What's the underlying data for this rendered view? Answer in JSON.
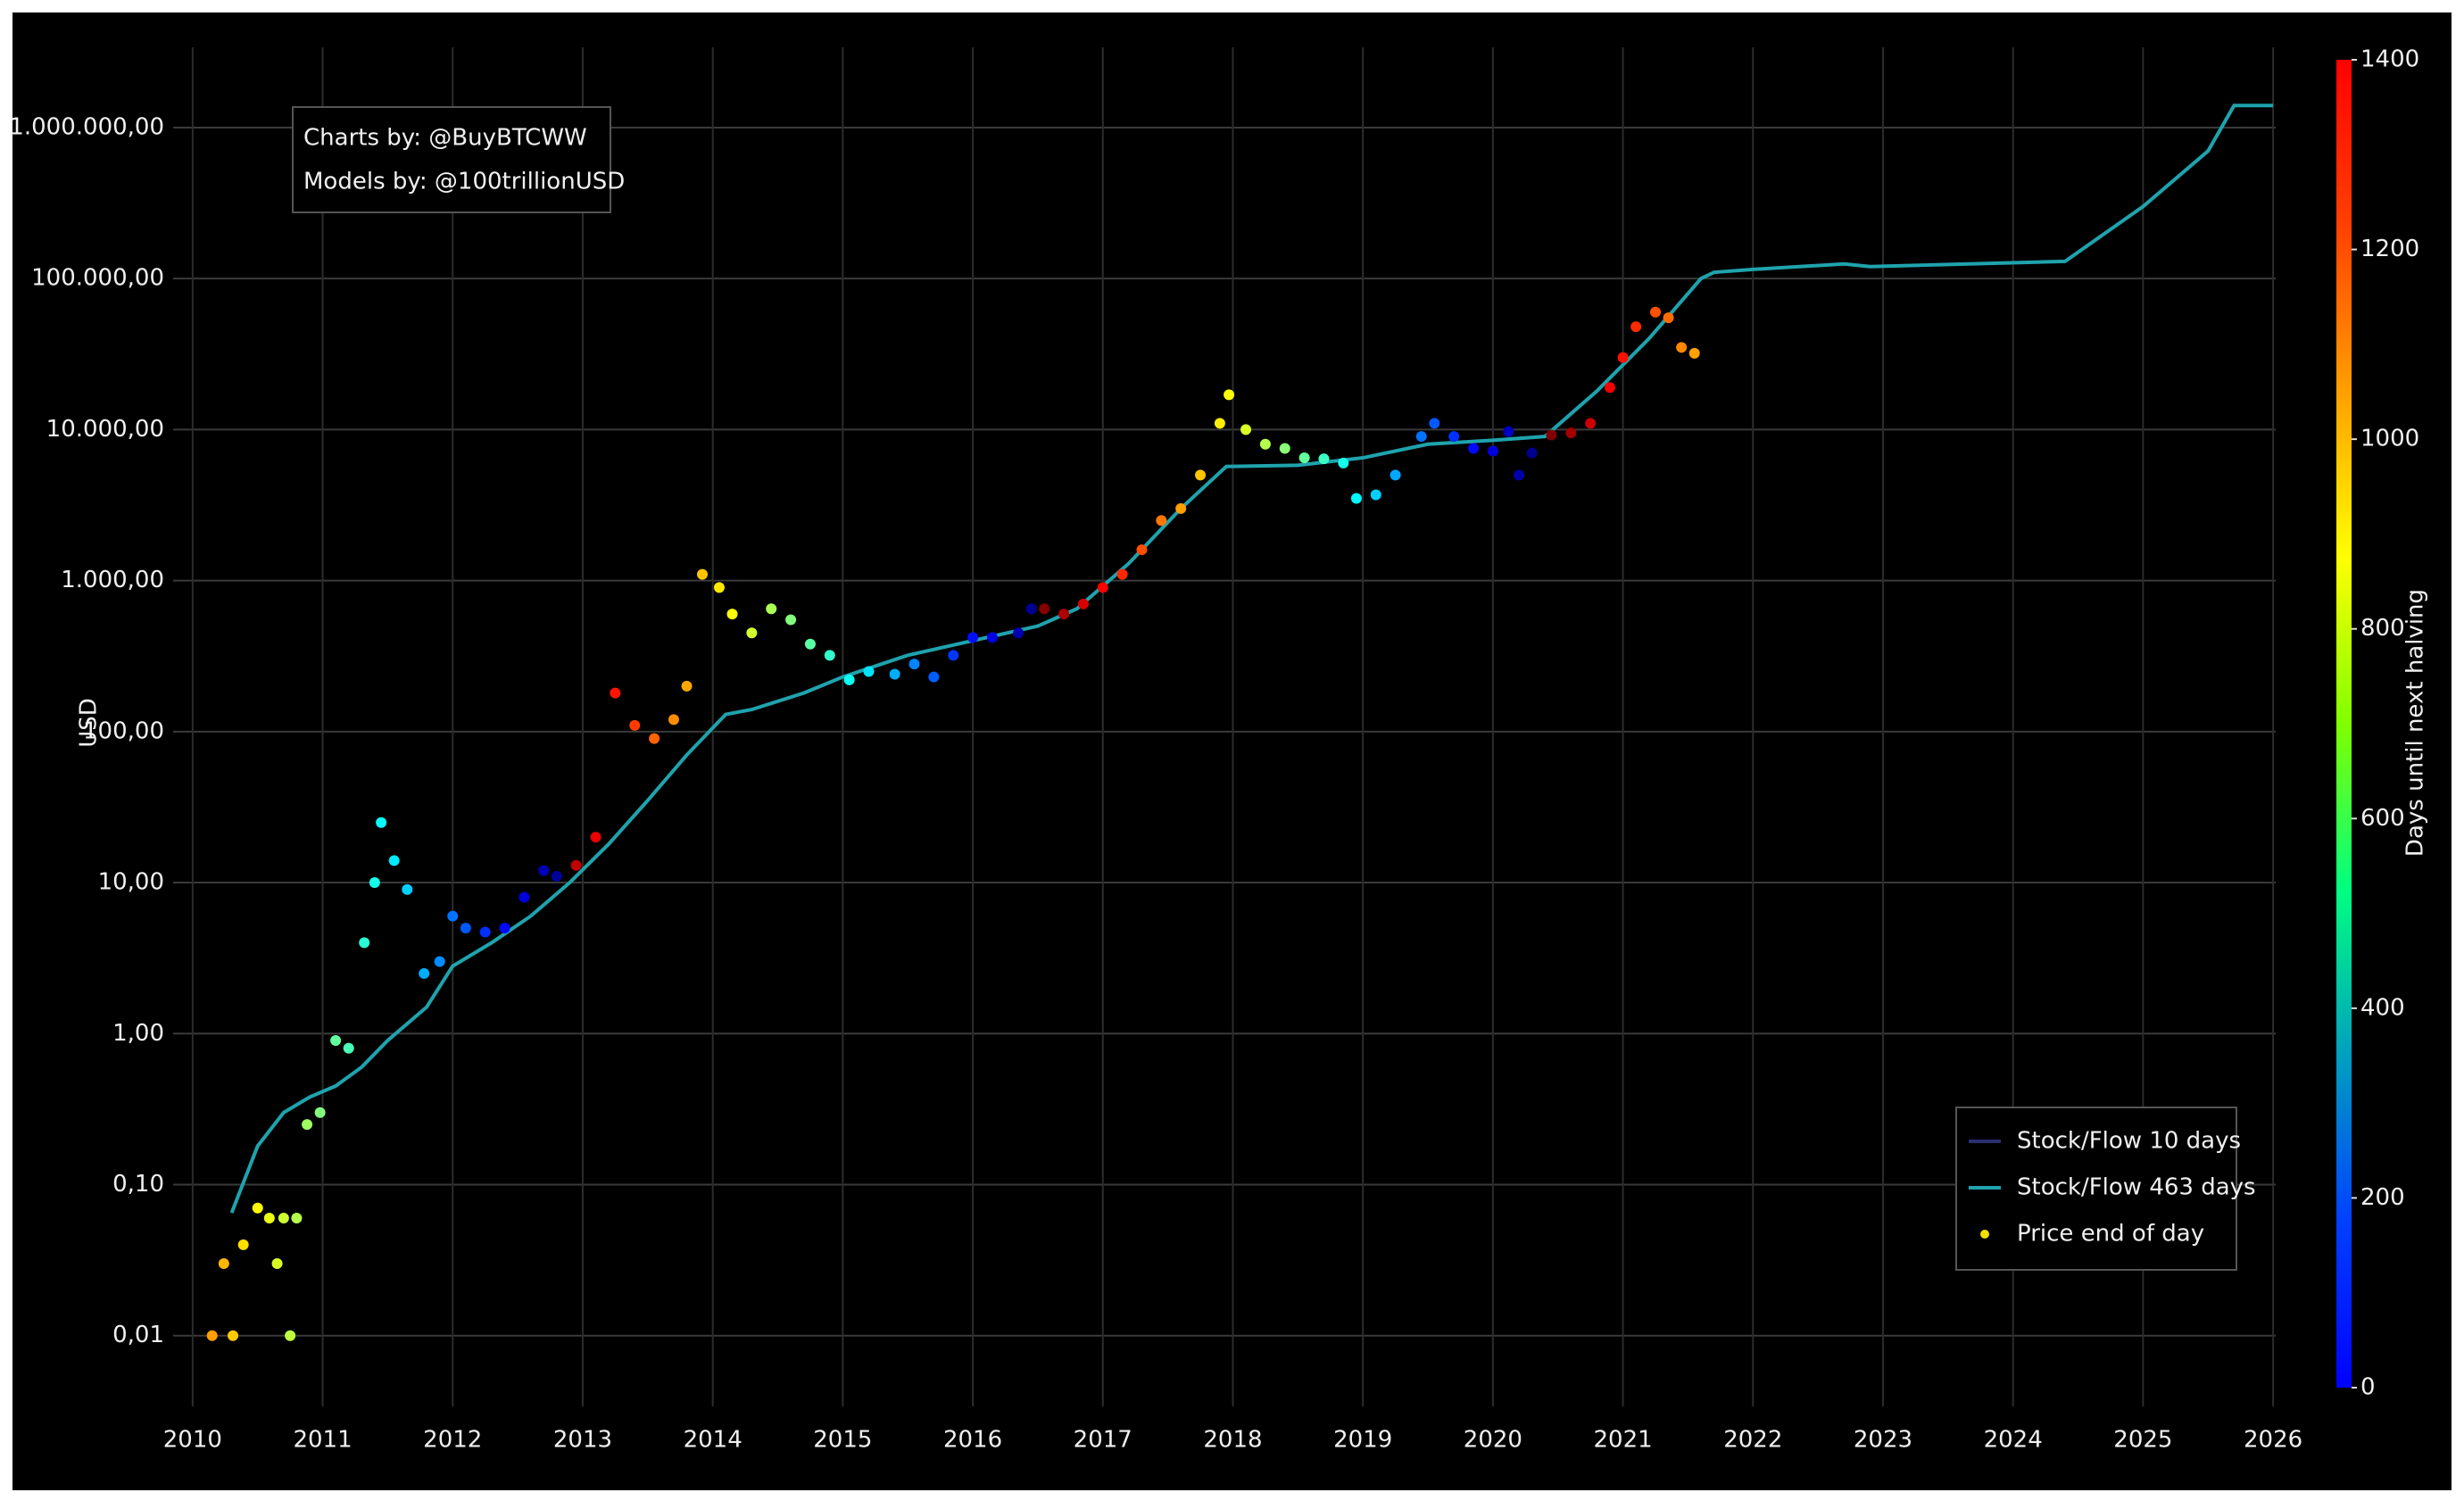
{
  "chart_data": {
    "type": "line",
    "y_label": "USD",
    "log_y": true,
    "grid": true,
    "legend_position": "lower right",
    "annotations": [
      "Charts by: @BuyBTCWW",
      "Models by: @100trillionUSD"
    ],
    "xlim": [
      2009.85,
      2026.02
    ],
    "xticks": [
      2010,
      2011,
      2012,
      2013,
      2014,
      2015,
      2016,
      2017,
      2018,
      2019,
      2020,
      2021,
      2022,
      2023,
      2024,
      2025,
      2026
    ],
    "ylim": [
      0.0034,
      3400000
    ],
    "yticks": [
      {
        "value": 0.01,
        "label": "0,01"
      },
      {
        "value": 0.1,
        "label": "0,10"
      },
      {
        "value": 1,
        "label": "1,00"
      },
      {
        "value": 10,
        "label": "10,00"
      },
      {
        "value": 100,
        "label": "100,00"
      },
      {
        "value": 1000,
        "label": "1.000,00"
      },
      {
        "value": 10000,
        "label": "10.000,00"
      },
      {
        "value": 100000,
        "label": "100.000,00"
      },
      {
        "value": 1000000,
        "label": "1.000.000,00"
      }
    ],
    "colorbar": {
      "label": "Days until next halving",
      "range": [
        0,
        1400
      ],
      "ticks": [
        0,
        200,
        400,
        600,
        800,
        1000,
        1200,
        1400
      ]
    },
    "series": [
      {
        "name": "Stock/Flow 10 days",
        "kind": "line",
        "color": "#2b2f6e",
        "x": [],
        "values": []
      },
      {
        "name": "Stock/Flow 463 days",
        "kind": "line",
        "color": "#1fa3ad",
        "x": [
          2010.3,
          2010.5,
          2010.7,
          2010.9,
          2011.1,
          2011.3,
          2011.5,
          2011.8,
          2012.0,
          2012.3,
          2012.6,
          2012.9,
          2013.2,
          2013.5,
          2013.8,
          2014.1,
          2014.3,
          2014.7,
          2015.0,
          2015.5,
          2016.0,
          2016.5,
          2016.8,
          2017.2,
          2017.6,
          2017.95,
          2018.5,
          2019.0,
          2019.5,
          2020.0,
          2020.4,
          2020.8,
          2021.2,
          2021.6,
          2021.7,
          2022.0,
          2022.7,
          2022.9,
          2024.4,
          2025.0,
          2025.5,
          2025.7,
          2026.0
        ],
        "values": [
          0.065,
          0.18,
          0.3,
          0.38,
          0.45,
          0.6,
          0.9,
          1.5,
          2.8,
          4,
          6,
          10,
          18,
          35,
          70,
          130,
          140,
          180,
          230,
          320,
          400,
          500,
          650,
          1300,
          3000,
          5700,
          5800,
          6500,
          8000,
          8500,
          9000,
          18000,
          40000,
          100000,
          110000,
          115000,
          125000,
          120000,
          130000,
          300000,
          700000,
          1400000,
          1400000
        ]
      },
      {
        "name": "Price end of day",
        "kind": "scatter",
        "color": "#f2e000",
        "x": [
          2010.15,
          2010.24,
          2010.31,
          2010.39,
          2010.5,
          2010.59,
          2010.65,
          2010.7,
          2010.75,
          2010.8,
          2010.88,
          2010.98,
          2011.1,
          2011.2,
          2011.32,
          2011.4,
          2011.45,
          2011.55,
          2011.65,
          2011.78,
          2011.9,
          2012.0,
          2012.1,
          2012.25,
          2012.4,
          2012.55,
          2012.7,
          2012.8,
          2012.95,
          2013.1,
          2013.25,
          2013.4,
          2013.55,
          2013.7,
          2013.8,
          2013.92,
          2014.05,
          2014.15,
          2014.3,
          2014.45,
          2014.6,
          2014.75,
          2014.9,
          2015.05,
          2015.2,
          2015.4,
          2015.55,
          2015.7,
          2015.85,
          2016.0,
          2016.15,
          2016.35,
          2016.45,
          2016.55,
          2016.7,
          2016.85,
          2017.0,
          2017.15,
          2017.3,
          2017.45,
          2017.6,
          2017.75,
          2017.9,
          2017.97,
          2018.1,
          2018.25,
          2018.4,
          2018.55,
          2018.7,
          2018.85,
          2018.95,
          2019.1,
          2019.25,
          2019.45,
          2019.55,
          2019.7,
          2019.85,
          2020.0,
          2020.12,
          2020.2,
          2020.3,
          2020.45,
          2020.6,
          2020.75,
          2020.9,
          2021.0,
          2021.1,
          2021.25,
          2021.35,
          2021.45,
          2021.55
        ],
        "values": [
          0.01,
          0.03,
          0.01,
          0.04,
          0.07,
          0.06,
          0.03,
          0.06,
          0.01,
          0.06,
          0.25,
          0.3,
          0.9,
          0.8,
          4,
          10,
          25,
          14,
          9,
          2.5,
          3,
          6,
          5,
          4.7,
          5,
          8,
          12,
          11,
          13,
          20,
          180,
          110,
          90,
          120,
          200,
          1100,
          900,
          600,
          450,
          650,
          550,
          380,
          320,
          220,
          250,
          240,
          280,
          230,
          320,
          420,
          420,
          450,
          650,
          650,
          600,
          700,
          900,
          1100,
          1600,
          2500,
          3000,
          5000,
          11000,
          17000,
          10000,
          8000,
          7500,
          6500,
          6400,
          6000,
          3500,
          3700,
          5000,
          9000,
          11000,
          9000,
          7500,
          7200,
          9700,
          5000,
          7000,
          9200,
          9500,
          11000,
          19000,
          30000,
          48000,
          60000,
          55000,
          35000,
          32000
        ],
        "c": [
          1007,
          975,
          949,
          920,
          880,
          847,
          825,
          807,
          788,
          770,
          741,
          704,
          661,
          624,
          580,
          551,
          533,
          496,
          460,
          412,
          369,
          332,
          296,
          241,
          186,
          131,
          77,
          40,
          1307,
          1252,
          1197,
          1142,
          1088,
          1033,
          996,
          953,
          905,
          869,
          814,
          759,
          704,
          650,
          595,
          540,
          485,
          412,
          358,
          303,
          248,
          193,
          139,
          66,
          29,
          1391,
          1336,
          1281,
          1226,
          1172,
          1117,
          1062,
          1007,
          953,
          898,
          872,
          825,
          770,
          715,
          661,
          606,
          551,
          515,
          460,
          405,
          332,
          296,
          241,
          186,
          131,
          88,
          58,
          22,
          1398,
          1350,
          1296,
          1241,
          1204,
          1168,
          1113,
          1077,
          1040,
          1004
        ]
      }
    ]
  }
}
